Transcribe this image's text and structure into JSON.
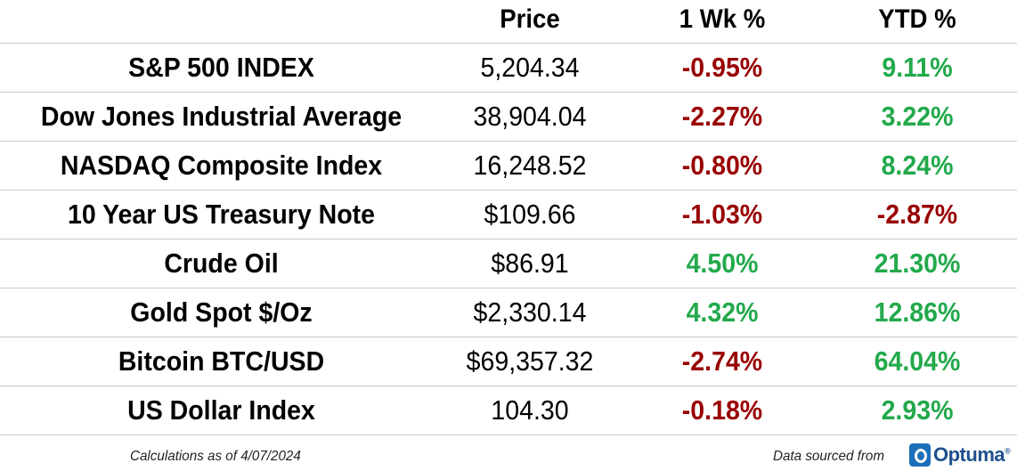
{
  "chart_data": {
    "type": "table",
    "columns": [
      "",
      "Price",
      "1 Wk %",
      "YTD %"
    ],
    "rows": [
      {
        "name": "S&P 500 INDEX",
        "price": "5,204.34",
        "wk": "-0.95%",
        "ytd": "9.11%"
      },
      {
        "name": "Dow Jones Industrial Average",
        "price": "38,904.04",
        "wk": "-2.27%",
        "ytd": "3.22%"
      },
      {
        "name": "NASDAQ Composite Index",
        "price": "16,248.52",
        "wk": "-0.80%",
        "ytd": "8.24%"
      },
      {
        "name": "10 Year US Treasury Note",
        "price": "$109.66",
        "wk": "-1.03%",
        "ytd": "-2.87%"
      },
      {
        "name": "Crude Oil",
        "price": "$86.91",
        "wk": "4.50%",
        "ytd": "21.30%"
      },
      {
        "name": "Gold Spot $/Oz",
        "price": "$2,330.14",
        "wk": "4.32%",
        "ytd": "12.86%"
      },
      {
        "name": "Bitcoin BTC/USD",
        "price": "$69,357.32",
        "wk": "-2.74%",
        "ytd": "64.04%"
      },
      {
        "name": "US Dollar Index",
        "price": "104.30",
        "wk": "-0.18%",
        "ytd": "2.93%"
      }
    ],
    "colors": {
      "negative": "#990000",
      "positive": "#22a94b"
    }
  },
  "footer": {
    "left": "Calculations as of 4/07/2024",
    "right": "Data sourced from",
    "logo_text": "Optuma"
  }
}
